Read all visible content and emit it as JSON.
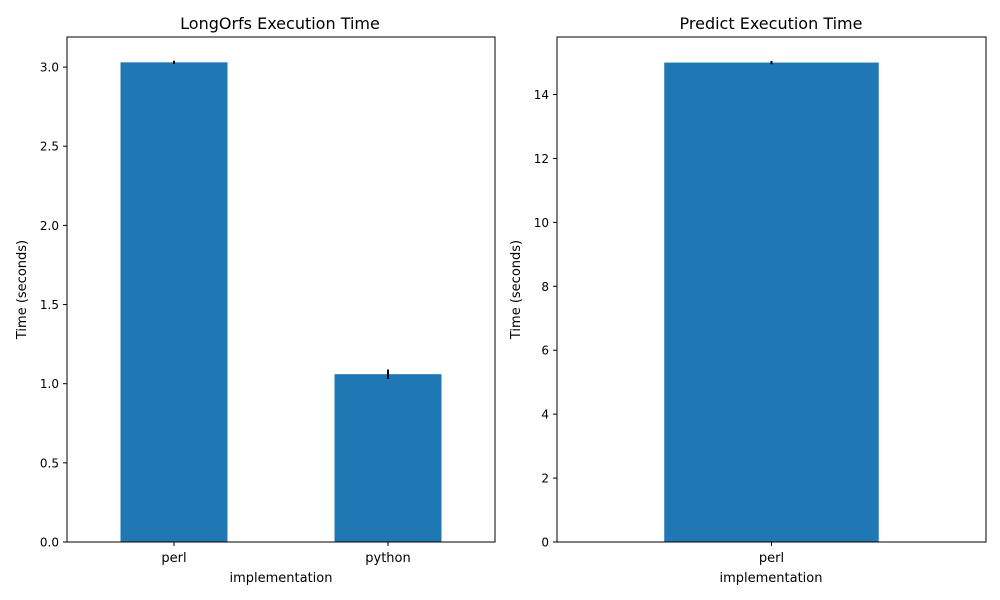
{
  "chart_data": [
    {
      "type": "bar",
      "title": "LongOrfs Execution Time",
      "xlabel": "implementation",
      "ylabel": "Time (seconds)",
      "categories": [
        "perl",
        "python"
      ],
      "values": [
        3.03,
        1.06
      ],
      "errors": [
        0.01,
        0.03
      ],
      "ylim": [
        0,
        3.19
      ],
      "yticks": [
        0.0,
        0.5,
        1.0,
        1.5,
        2.0,
        2.5,
        3.0
      ],
      "ytick_labels": [
        "0.0",
        "0.5",
        "1.0",
        "1.5",
        "2.0",
        "2.5",
        "3.0"
      ],
      "bar_color": "#1f77b4",
      "grid": false
    },
    {
      "type": "bar",
      "title": "Predict Execution Time",
      "xlabel": "implementation",
      "ylabel": "Time (seconds)",
      "categories": [
        "perl"
      ],
      "values": [
        15.0
      ],
      "errors": [
        0.05
      ],
      "ylim": [
        0,
        15.8
      ],
      "yticks": [
        0,
        2,
        4,
        6,
        8,
        10,
        12,
        14
      ],
      "ytick_labels": [
        "0",
        "2",
        "4",
        "6",
        "8",
        "10",
        "12",
        "14"
      ],
      "bar_color": "#1f77b4",
      "grid": false
    }
  ]
}
